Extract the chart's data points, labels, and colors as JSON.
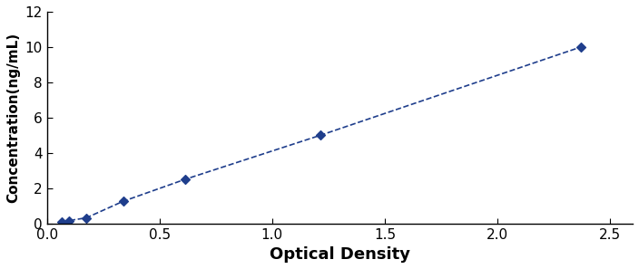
{
  "x_data": [
    0.067,
    0.097,
    0.175,
    0.338,
    0.614,
    1.215,
    2.37
  ],
  "y_data": [
    0.078,
    0.156,
    0.313,
    1.25,
    2.5,
    5.0,
    10.0
  ],
  "line_color": "#1F3E8C",
  "marker_color": "#1F3E8C",
  "marker_style": "D",
  "marker_size": 5,
  "line_width": 1.2,
  "line_style": "--",
  "xlabel": "Optical Density",
  "ylabel": "Concentration(ng/mL)",
  "xlim": [
    0,
    2.6
  ],
  "ylim": [
    0,
    12
  ],
  "xticks": [
    0,
    0.5,
    1.0,
    1.5,
    2.0,
    2.5
  ],
  "yticks": [
    0,
    2,
    4,
    6,
    8,
    10,
    12
  ],
  "xlabel_fontsize": 13,
  "ylabel_fontsize": 11,
  "tick_fontsize": 11,
  "background_color": "#FFFFFF",
  "figure_edge_color": "#CCCCCC"
}
